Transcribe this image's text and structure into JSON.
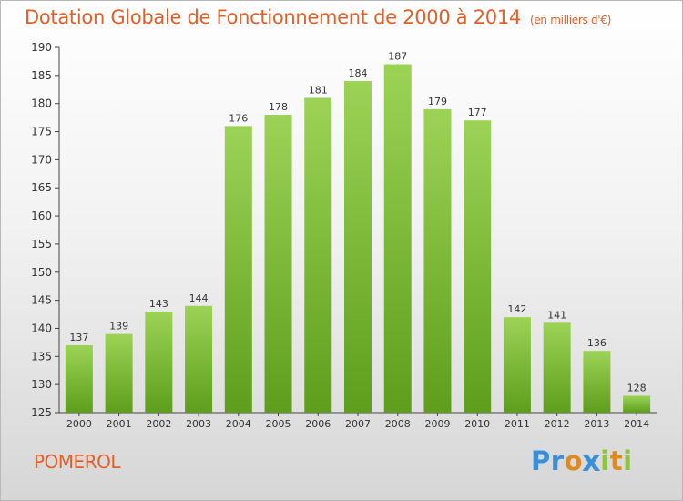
{
  "chart_data": {
    "type": "bar",
    "title": "Dotation Globale de Fonctionnement de 2000 à 2014",
    "subtitle": "(en milliers d'€)",
    "categories": [
      "2000",
      "2001",
      "2002",
      "2003",
      "2004",
      "2005",
      "2006",
      "2007",
      "2008",
      "2009",
      "2010",
      "2011",
      "2012",
      "2013",
      "2014"
    ],
    "values": [
      137,
      139,
      143,
      144,
      176,
      178,
      181,
      184,
      187,
      179,
      177,
      142,
      141,
      136,
      128
    ],
    "ylim": [
      125,
      190
    ],
    "yticks": [
      125,
      130,
      135,
      140,
      145,
      150,
      155,
      160,
      165,
      170,
      175,
      180,
      185,
      190
    ],
    "grid": false,
    "bar_color": "#7ab832",
    "legend": "none"
  },
  "commune": "POMEROL",
  "logo": {
    "text": "Proxiti",
    "letters": [
      {
        "ch": "P",
        "color": "#3b8ed8"
      },
      {
        "ch": "r",
        "color": "#3b8ed8"
      },
      {
        "ch": "o",
        "color": "#e08a1e"
      },
      {
        "ch": "x",
        "color": "#3b8ed8"
      },
      {
        "ch": "i",
        "color": "#8cc63f"
      },
      {
        "ch": "t",
        "color": "#e08a1e"
      },
      {
        "ch": "i",
        "color": "#8cc63f"
      }
    ]
  },
  "colors": {
    "title": "#e0602a",
    "bar": "#7ab832",
    "axis": "#333333"
  }
}
